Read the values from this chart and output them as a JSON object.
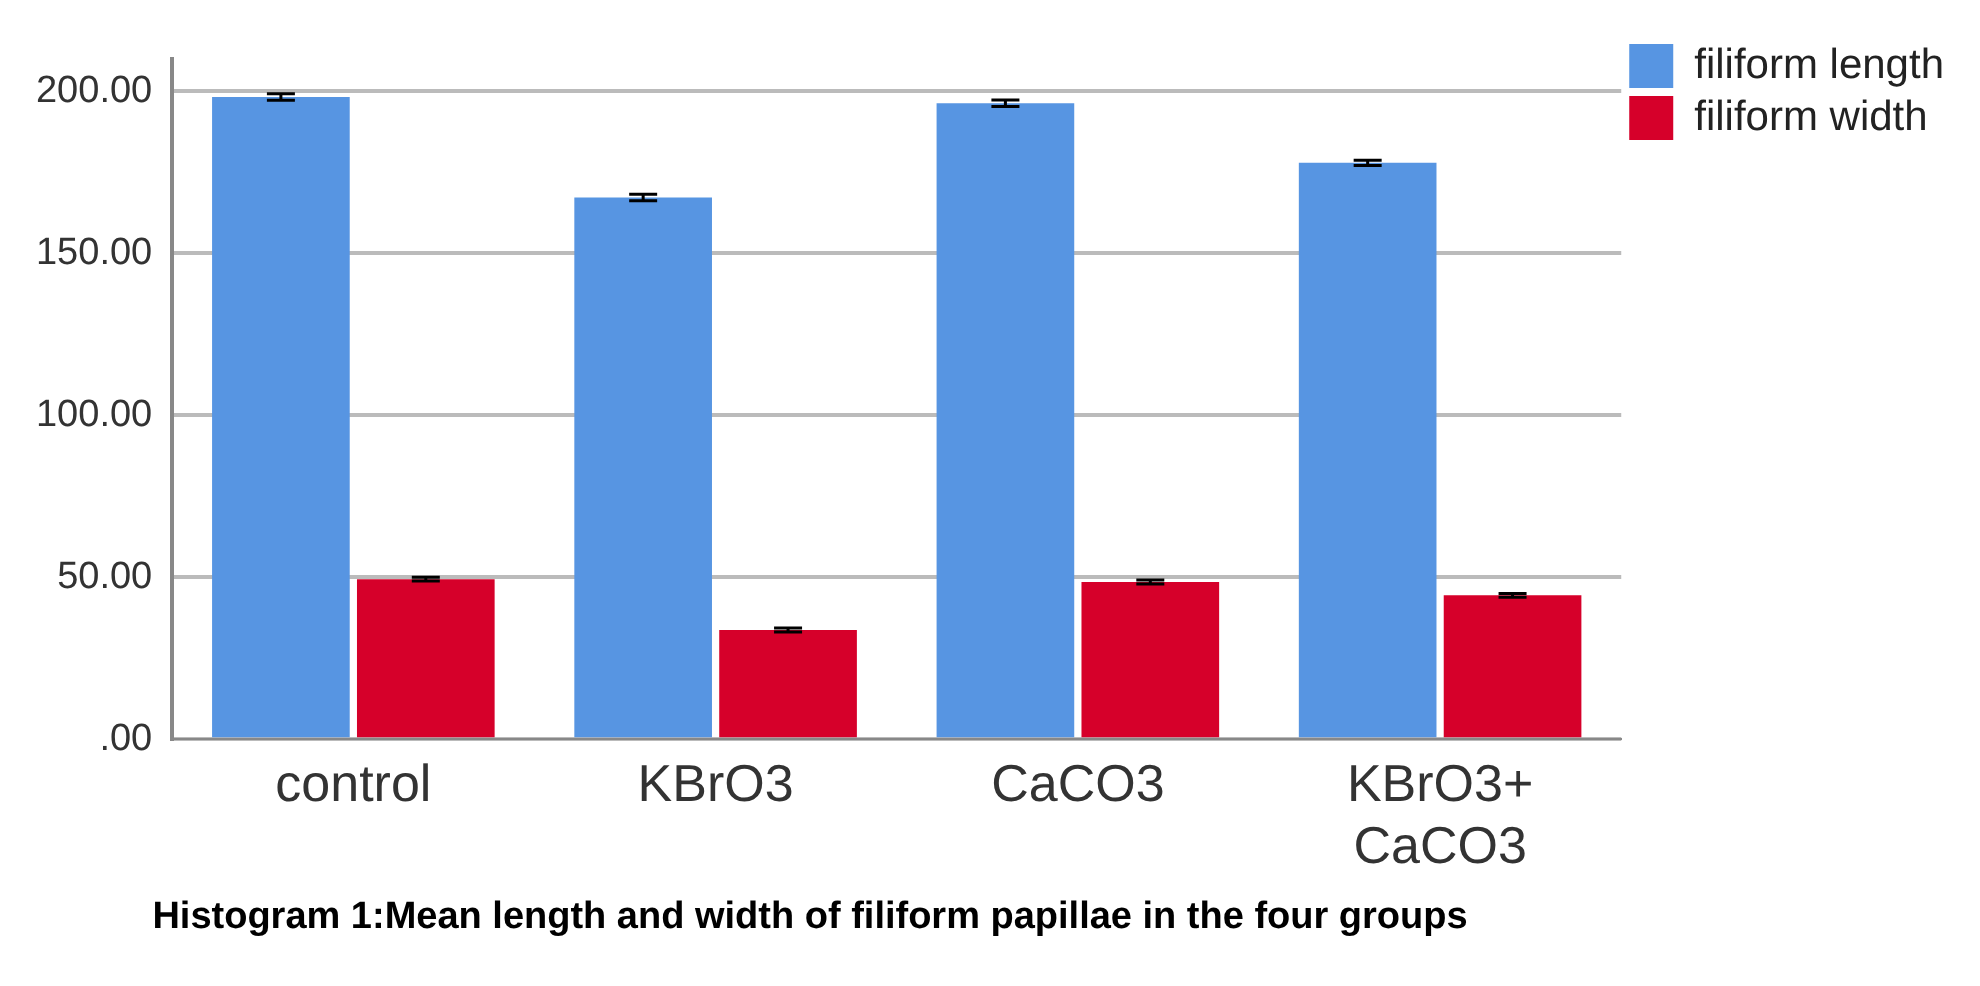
{
  "chart_data": {
    "type": "bar",
    "categories": [
      "control",
      "KBrO3",
      "CaCO3",
      "KBrO3+ CaCO3"
    ],
    "series": [
      {
        "name": "filiform length",
        "color": "#5795e2",
        "values": [
          198.2,
          167.2,
          196.3,
          177.9
        ],
        "errors": [
          1,
          1,
          1,
          0.8
        ]
      },
      {
        "name": "filiform width",
        "color": "#d6002a",
        "values": [
          49.4,
          33.7,
          48.5,
          44.4
        ],
        "errors": [
          0.6,
          0.6,
          0.6,
          0.6
        ]
      }
    ],
    "ylim": [
      0,
      210
    ],
    "yticks": [
      {
        "value": 0,
        "label": ".00"
      },
      {
        "value": 50,
        "label": "50.00"
      },
      {
        "value": 100,
        "label": "100.00"
      },
      {
        "value": 150,
        "label": "150.00"
      },
      {
        "value": 200,
        "label": "200.00"
      }
    ],
    "grid": "y",
    "legend": "top right",
    "annotations": [
      "Histogram 1:Mean length and width of filiform papillae in the four groups"
    ]
  }
}
